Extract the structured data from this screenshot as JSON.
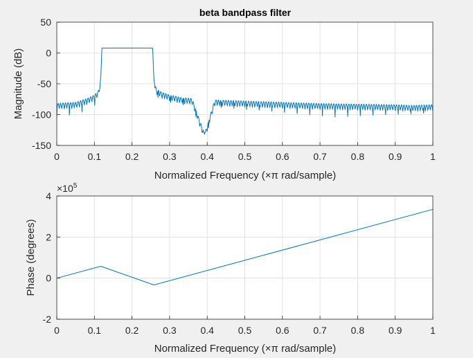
{
  "chart_data": [
    {
      "type": "line",
      "title": "beta bandpass filter",
      "xlabel": "Normalized Frequency  (×π rad/sample)",
      "ylabel": "Magnitude (dB)",
      "xlim": [
        0,
        1
      ],
      "ylim": [
        -150,
        50
      ],
      "xticks": [
        "0",
        "0.1",
        "0.2",
        "0.3",
        "0.4",
        "0.5",
        "0.6",
        "0.7",
        "0.8",
        "0.9",
        "1"
      ],
      "yticks": [
        "50",
        "0",
        "-50",
        "-100",
        "-150"
      ],
      "grid": true,
      "color": "#0072bd",
      "series": [
        {
          "x": [
            0,
            0.02,
            0.05,
            0.08,
            0.1,
            0.11,
            0.115,
            0.117,
            0.12,
            0.17,
            0.2,
            0.23,
            0.255,
            0.258,
            0.26,
            0.265,
            0.28,
            0.3,
            0.33,
            0.36,
            0.393,
            0.42,
            0.5,
            0.6,
            0.7,
            0.8,
            0.9,
            0.945,
            1
          ],
          "y": [
            -82,
            -81,
            -80,
            -74,
            -68,
            -62,
            -50,
            -40,
            8,
            8,
            8,
            8,
            8,
            -40,
            -50,
            -58,
            -64,
            -68,
            -72,
            -74,
            -132,
            -76,
            -78,
            -80,
            -82,
            -83,
            -84,
            -85,
            -84
          ]
        }
      ]
    },
    {
      "type": "line",
      "title": "",
      "xlabel": "Normalized Frequency  (×π rad/sample)",
      "ylabel": "Phase (degrees)",
      "exponent_label": "×10",
      "exponent_power": "5",
      "xlim": [
        0,
        1
      ],
      "ylim": [
        -2,
        4
      ],
      "xticks": [
        "0",
        "0.1",
        "0.2",
        "0.3",
        "0.4",
        "0.5",
        "0.6",
        "0.7",
        "0.8",
        "0.9",
        "1"
      ],
      "yticks": [
        "4",
        "2",
        "0",
        "-2"
      ],
      "grid": true,
      "color": "#0072bd",
      "series": [
        {
          "x": [
            0,
            0.117,
            0.258,
            1
          ],
          "y": [
            0,
            0.58,
            -0.33,
            3.35
          ]
        }
      ]
    }
  ]
}
